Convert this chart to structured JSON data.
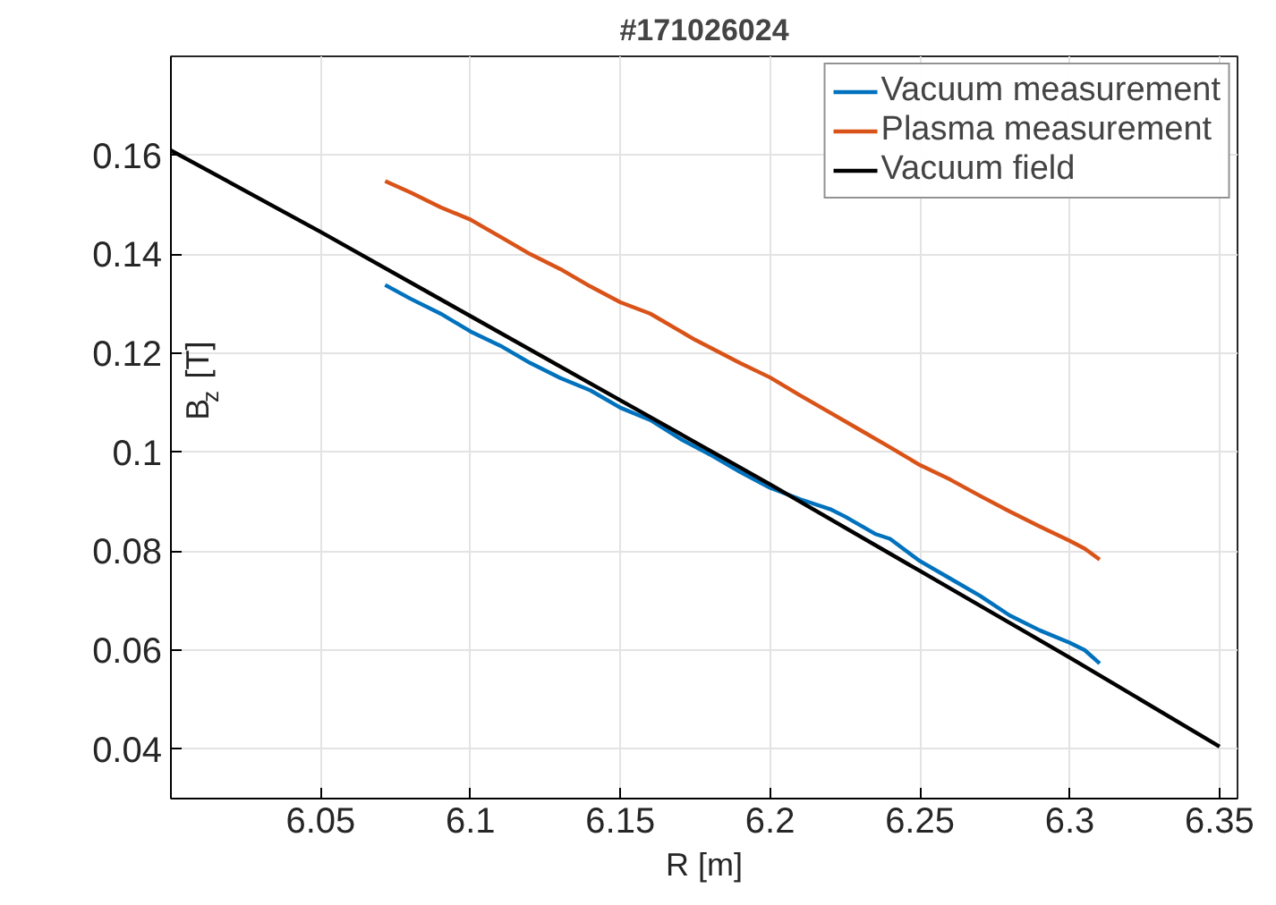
{
  "chart_data": {
    "type": "line",
    "title": "#171026024",
    "xlabel": "R [m]",
    "ylabel": "B$_{z}$ [T]",
    "xlim": [
      6.0,
      6.356
    ],
    "ylim": [
      0.03,
      0.18
    ],
    "xticks": [
      6.05,
      6.1,
      6.15,
      6.2,
      6.25,
      6.3,
      6.35
    ],
    "yticks": [
      0.04,
      0.06,
      0.08,
      0.1,
      0.12,
      0.14,
      0.16
    ],
    "grid": true,
    "legend": "top right",
    "line_style": "solid",
    "marker": "none",
    "series": [
      {
        "name": "Vacuum measurement",
        "color": "#0072bd",
        "x": [
          6.0715,
          6.08,
          6.09,
          6.1,
          6.11,
          6.12,
          6.13,
          6.14,
          6.15,
          6.16,
          6.17,
          6.18,
          6.19,
          6.2,
          6.21,
          6.22,
          6.225,
          6.235,
          6.24,
          6.25,
          6.26,
          6.27,
          6.28,
          6.29,
          6.3,
          6.305,
          6.31
        ],
        "values": [
          0.1338,
          0.131,
          0.128,
          0.1244,
          0.1215,
          0.118,
          0.115,
          0.1125,
          0.109,
          0.1065,
          0.1027,
          0.0995,
          0.096,
          0.0928,
          0.0905,
          0.0885,
          0.087,
          0.0835,
          0.0825,
          0.078,
          0.0745,
          0.071,
          0.067,
          0.064,
          0.0615,
          0.06,
          0.0573
        ]
      },
      {
        "name": "Plasma measurement",
        "color": "#d95319",
        "x": [
          6.0715,
          6.08,
          6.09,
          6.1,
          6.11,
          6.12,
          6.13,
          6.14,
          6.15,
          6.16,
          6.175,
          6.19,
          6.2,
          6.21,
          6.22,
          6.23,
          6.24,
          6.25,
          6.26,
          6.27,
          6.28,
          6.29,
          6.3,
          6.305,
          6.31
        ],
        "values": [
          0.1548,
          0.1525,
          0.1495,
          0.147,
          0.1435,
          0.14,
          0.137,
          0.1335,
          0.1303,
          0.128,
          0.1227,
          0.118,
          0.1151,
          0.1115,
          0.108,
          0.1045,
          0.101,
          0.0974,
          0.0945,
          0.0912,
          0.088,
          0.085,
          0.0821,
          0.0805,
          0.0783
        ]
      },
      {
        "name": "Vacuum field",
        "color": "#000000",
        "x": [
          6.0,
          6.05,
          6.1,
          6.15,
          6.2,
          6.25,
          6.3,
          6.35
        ],
        "values": [
          0.161,
          0.1445,
          0.1275,
          0.1105,
          0.0935,
          0.076,
          0.0585,
          0.0405
        ]
      }
    ]
  }
}
